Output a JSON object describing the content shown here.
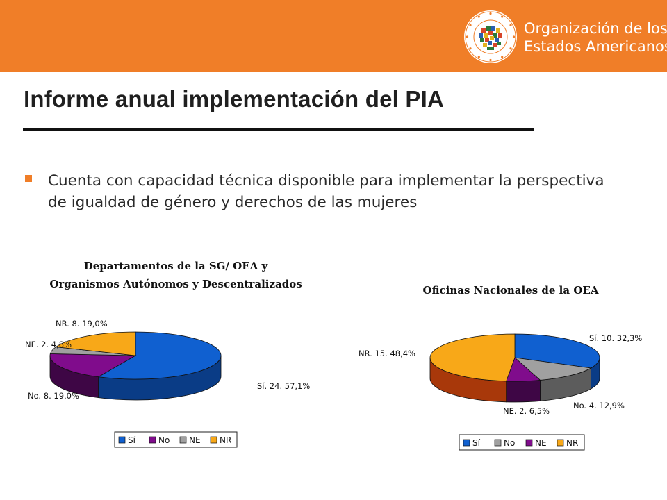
{
  "header": {
    "org_name_line1": "Organización de los",
    "org_name_line2": "Estados Americanos",
    "seal_text": "ORGANIZACION DE LOS ESTADOS AMERICANOS",
    "background_color": "#F07E28"
  },
  "slide": {
    "title": "Informe anual implementación del PIA",
    "bullet": "Cuenta con capacidad técnica disponible para implementar la perspectiva de igualdad de género y derechos de las mujeres",
    "bullet_color": "#F07E28"
  },
  "chart_data": [
    {
      "type": "pie",
      "title_lines": [
        "Departamentos de la SG/ OEA y",
        "Organismos Autónomos y Descentralizados"
      ],
      "categories": [
        "Sí",
        "No",
        "NE",
        "NR"
      ],
      "values": [
        24,
        8,
        2,
        8
      ],
      "percents": [
        57.1,
        19.0,
        4.8,
        19.0
      ],
      "data_labels": [
        "Sí. 24. 57,1%",
        "No. 8. 19,0%",
        "NE. 2. 4,8%",
        "NR. 8. 19,0%"
      ],
      "colors": [
        "#1060D0",
        "#800C8C",
        "#A0A0A0",
        "#F8A818"
      ],
      "side_colors": [
        "#0A3C86",
        "#3E0645",
        "#5C5C5C",
        "#9E5E06"
      ],
      "legend": [
        "Sí",
        "No",
        "NE",
        "NR"
      ],
      "legend_placement": "bottom",
      "style": "3d"
    },
    {
      "type": "pie",
      "title_lines": [
        "Oficinas Nacionales de la OEA"
      ],
      "categories": [
        "Sí",
        "No",
        "NE",
        "NR"
      ],
      "values": [
        10,
        4,
        2,
        15
      ],
      "percents": [
        32.3,
        12.9,
        6.5,
        48.4
      ],
      "data_labels": [
        "Sí. 10. 32,3%",
        "No. 4. 12,9%",
        "NE. 2. 6,5%",
        "NR. 15. 48,4%"
      ],
      "colors": [
        "#1060D0",
        "#A0A0A0",
        "#800C8C",
        "#F8A818"
      ],
      "side_colors": [
        "#0A3C86",
        "#5C5C5C",
        "#3E0645",
        "#A8380A"
      ],
      "legend": [
        "Sí",
        "No",
        "NE",
        "NR"
      ],
      "legend_placement": "bottom",
      "style": "3d"
    }
  ]
}
